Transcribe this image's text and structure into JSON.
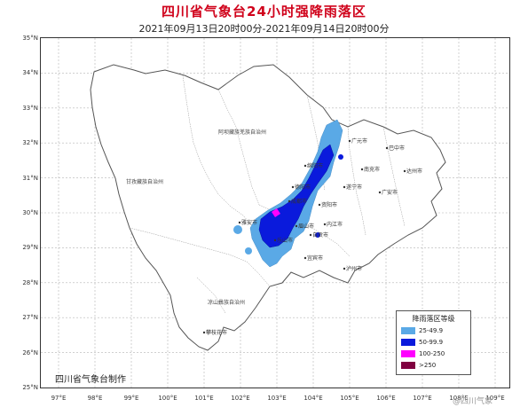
{
  "title": "四川省气象台24小时强降雨落区",
  "subtitle": "2021年09月13日20时00分-2021年09月14日20时00分",
  "producer": "四川省气象台制作",
  "watermark": "@四川气象",
  "lat_labels": [
    "35°N",
    "34°N",
    "33°N",
    "32°N",
    "31°N",
    "30°N",
    "29°N",
    "28°N",
    "27°N",
    "26°N",
    "25°N"
  ],
  "lon_labels": [
    "97°E",
    "98°E",
    "99°E",
    "100°E",
    "101°E",
    "102°E",
    "103°E",
    "104°E",
    "105°E",
    "106°E",
    "107°E",
    "108°E",
    "109°E"
  ],
  "legend": {
    "title": "降雨落区等级",
    "items": [
      {
        "label": "25-49.9",
        "color": "#5aa9e6"
      },
      {
        "label": "50-99.9",
        "color": "#0a1adc"
      },
      {
        "label": "100-250",
        "color": "#ff00ff"
      },
      {
        "label": ">250",
        "color": "#800040"
      }
    ]
  },
  "regions": [
    "阿坝藏族羌族自治州",
    "甘孜藏族自治州",
    "凉山彝族自治州"
  ],
  "cities": [
    "广元市",
    "巴中市",
    "达州市",
    "绵阳市",
    "德阳市",
    "成都市",
    "雅安市",
    "眉山市",
    "乐山市",
    "遂宁市",
    "南充市",
    "广安市",
    "资阳市",
    "内江市",
    "自贡市",
    "宜宾市",
    "泸州市",
    "攀枝花市"
  ]
}
